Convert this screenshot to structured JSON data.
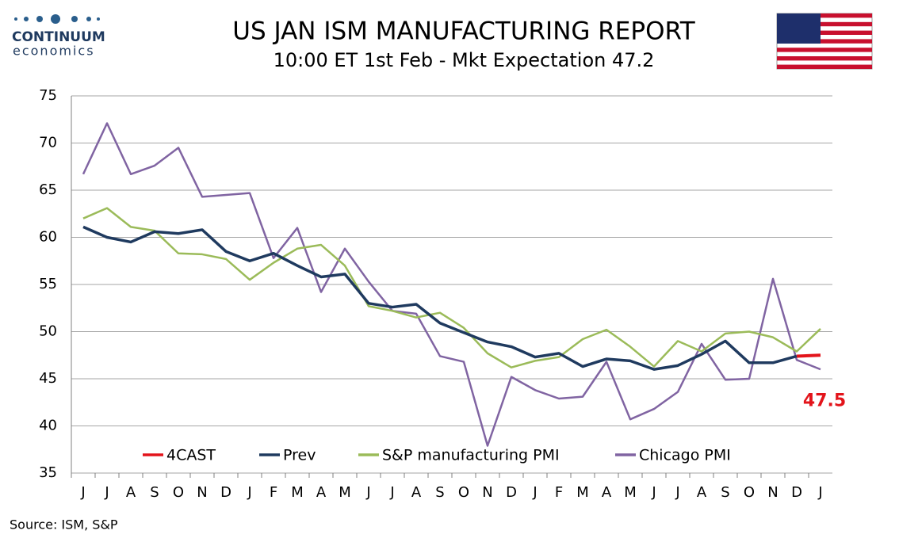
{
  "brand": {
    "name": "CONTINUUM",
    "tagline": "economics"
  },
  "chart_data": {
    "type": "line",
    "title": "US JAN ISM MANUFACTURING REPORT",
    "subtitle": "10:00 ET 1st Feb - Mkt Expectation 47.2",
    "source": "Source: ISM, S&P",
    "categories": [
      "J",
      "J",
      "A",
      "S",
      "O",
      "N",
      "D",
      "J",
      "F",
      "M",
      "A",
      "M",
      "J",
      "J",
      "A",
      "S",
      "O",
      "N",
      "D",
      "J",
      "F",
      "M",
      "A",
      "M",
      "J",
      "J",
      "A",
      "S",
      "O",
      "N",
      "D",
      "J"
    ],
    "series": [
      {
        "name": "4CAST",
        "color": "#e3141b",
        "values": [
          null,
          null,
          null,
          null,
          null,
          null,
          null,
          null,
          null,
          null,
          null,
          null,
          null,
          null,
          null,
          null,
          null,
          null,
          null,
          null,
          null,
          null,
          null,
          null,
          null,
          null,
          null,
          null,
          null,
          null,
          47.4,
          47.5
        ],
        "value_labels": [
          null,
          null,
          null,
          null,
          null,
          null,
          null,
          null,
          null,
          null,
          null,
          null,
          null,
          null,
          null,
          null,
          null,
          null,
          null,
          null,
          null,
          null,
          null,
          null,
          null,
          null,
          null,
          null,
          null,
          null,
          null,
          "47.5"
        ]
      },
      {
        "name": "Prev",
        "color": "#1f3a5f",
        "values": [
          61.1,
          60.0,
          59.5,
          60.6,
          60.4,
          60.8,
          58.5,
          57.5,
          58.3,
          57.0,
          55.8,
          56.1,
          53.0,
          52.6,
          52.9,
          50.9,
          49.9,
          48.9,
          48.4,
          47.3,
          47.7,
          46.3,
          47.1,
          46.9,
          46.0,
          46.4,
          47.6,
          49.0,
          46.7,
          46.7,
          47.4,
          null
        ]
      },
      {
        "name": "S&P manufacturing PMI",
        "color": "#9bbb59",
        "values": [
          62.0,
          63.1,
          61.1,
          60.7,
          58.3,
          58.2,
          57.7,
          55.5,
          57.3,
          58.8,
          59.2,
          57.0,
          52.7,
          52.2,
          51.5,
          52.0,
          50.4,
          47.7,
          46.2,
          46.9,
          47.3,
          49.2,
          50.2,
          48.4,
          46.3,
          49.0,
          47.9,
          49.8,
          50.0,
          49.4,
          47.9,
          50.3
        ]
      },
      {
        "name": "Chicago PMI",
        "color": "#8064a2",
        "values": [
          66.7,
          72.1,
          66.7,
          67.6,
          69.5,
          64.3,
          64.5,
          64.7,
          57.8,
          61.0,
          54.2,
          58.8,
          55.3,
          52.2,
          51.9,
          47.4,
          46.8,
          37.9,
          45.2,
          43.8,
          42.9,
          43.1,
          46.8,
          40.7,
          41.8,
          43.6,
          48.7,
          44.9,
          45.0,
          55.6,
          47.0,
          46.0
        ]
      }
    ],
    "ylim": [
      35,
      75
    ],
    "yticks": [
      35,
      40,
      45,
      50,
      55,
      60,
      65,
      70,
      75
    ],
    "grid": true
  }
}
